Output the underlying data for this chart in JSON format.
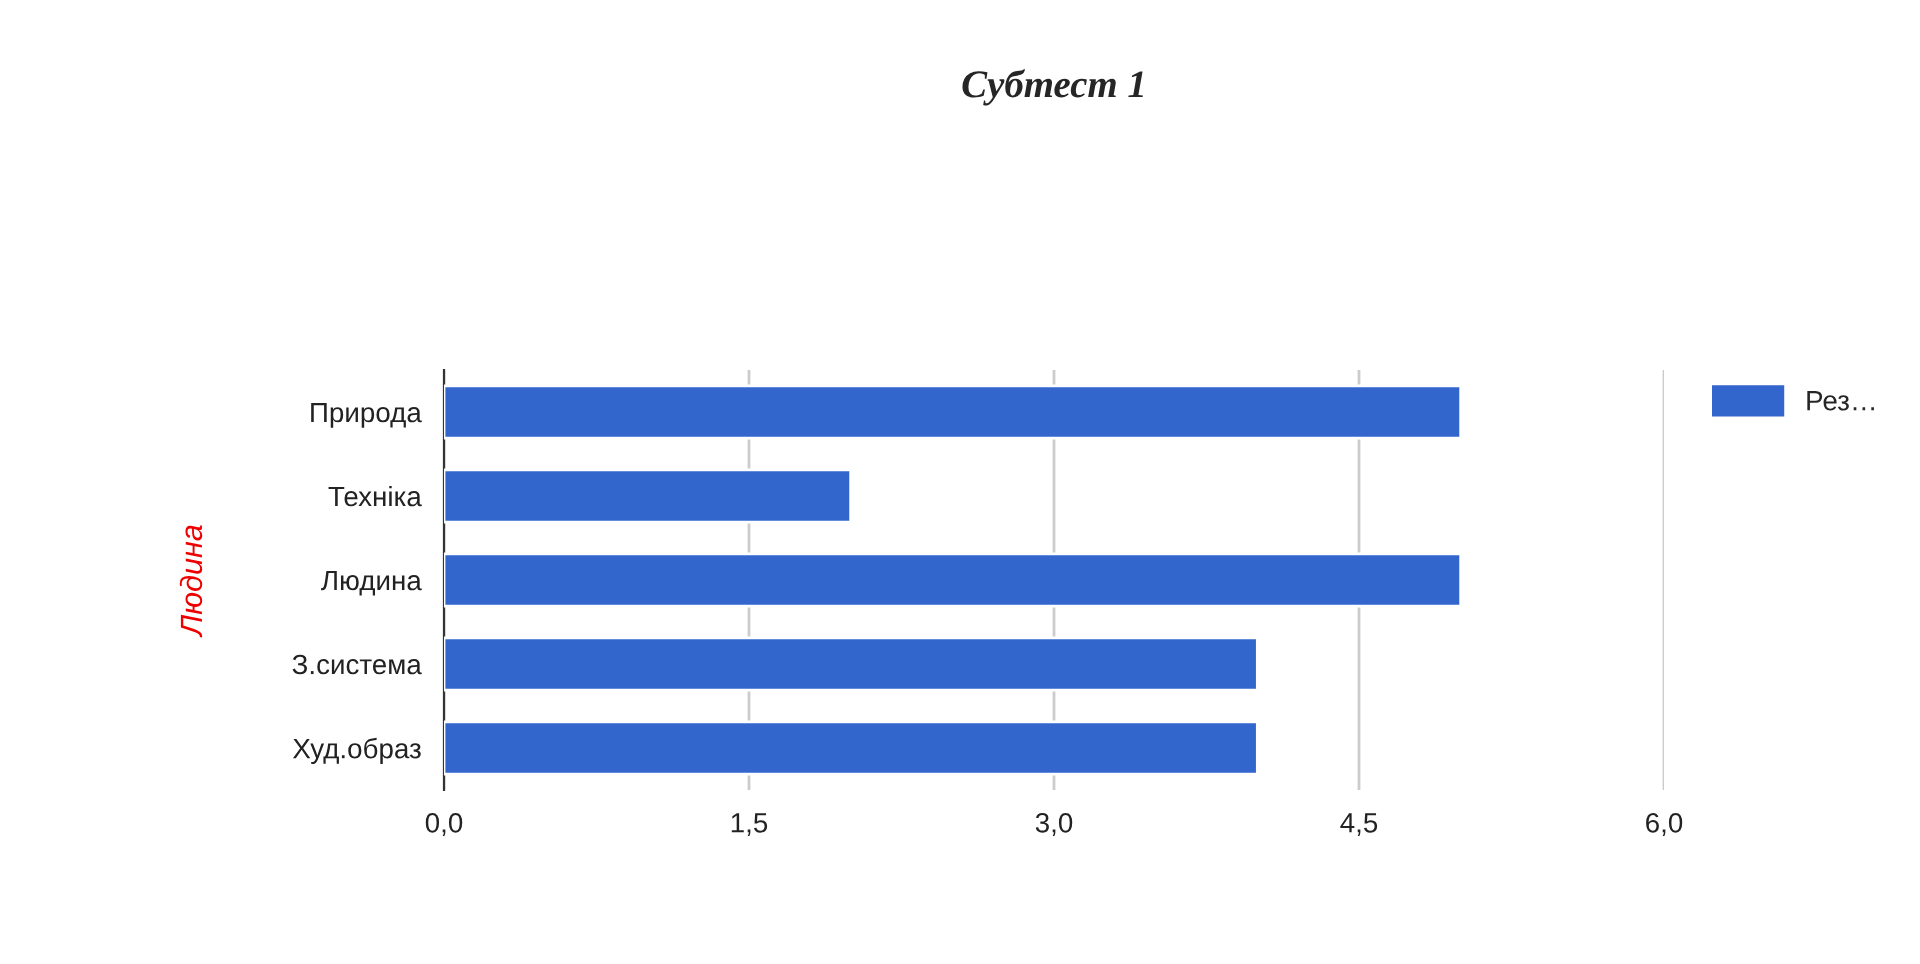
{
  "chart_data": {
    "type": "bar",
    "orientation": "horizontal",
    "title": "Субтест 1",
    "ylabel": "Людина",
    "categories": [
      "Природа",
      "Техніка",
      "Людина",
      "З.система",
      "Худ.образ"
    ],
    "series": [
      {
        "name": "Рез…",
        "color": "#3366cc",
        "values": [
          5,
          2,
          5,
          4,
          4
        ]
      }
    ],
    "xlim": [
      0,
      6
    ],
    "xticks": [
      {
        "value": 0,
        "label": "0,0"
      },
      {
        "value": 1.5,
        "label": "1,5"
      },
      {
        "value": 3,
        "label": "3,0"
      },
      {
        "value": 4.5,
        "label": "4,5"
      },
      {
        "value": 6,
        "label": "6,0"
      }
    ],
    "grid": "x",
    "legend": "top right"
  }
}
